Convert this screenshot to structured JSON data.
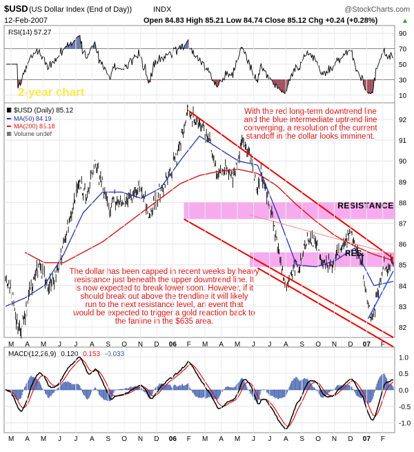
{
  "header": {
    "symbol": "$USD",
    "name": "(US Dollar Index (End of Day))",
    "exchange": "INDX",
    "watermark": "@StockCharts.com",
    "date": "12-Feb-2007",
    "ohlc_text": "Open 84.83  High 85.21  Low 84.74  Close 85.12  Chg +0.24 (+0.28%)",
    "up_glyph": "▲"
  },
  "rsi_panel": {
    "label": "RSI(14) 57.27",
    "annotation": "2-year chart",
    "y_ticks": [
      "90",
      "70",
      "50",
      "30",
      "10"
    ],
    "overbought": 70,
    "oversold": 30,
    "colors": {
      "line": "#000000",
      "fill_high": "#6b7aa8",
      "fill_low": "#a05060",
      "annotation": "#ffe84a",
      "bg": "#ffffff"
    }
  },
  "price_panel": {
    "legend": {
      "main": "$USD (Daily) 85.12",
      "ma50": "MA(50) 84.19",
      "ma200": "MA(200) 85.18",
      "volume": "Volume undef"
    },
    "y_ticks": [
      "92",
      "91",
      "90",
      "89",
      "88",
      "87",
      "86",
      "85",
      "84",
      "83",
      "82"
    ],
    "annotations": {
      "top": "With the red long-term downtrend line and the blue intermediate uptrend line converging, a resolution of the current standoff in the dollar looks imminent.",
      "resistance": "RESISTANCE",
      "res": "RES.",
      "bottom": "The dollar has been capped in recent weeks by heavy resistance just beneath the upper downtrend line. It is now expected to break lower soon. However, if it should break out above the trendline it will likely run to the next resistance level, an event that would be expected to trigger a gold reaction back to the fanline in the $635 area."
    },
    "colors": {
      "bars": "#000000",
      "ma50": "#2233aa",
      "ma200": "#dd1111",
      "trend": "#ee0000",
      "uptrend": "#3355dd",
      "zone": "#f7a8f0",
      "annotation": "#dd1111"
    }
  },
  "x_axis": {
    "labels": [
      "M",
      "A",
      "M",
      "J",
      "J",
      "A",
      "S",
      "O",
      "N",
      "D",
      "06",
      "F",
      "M",
      "A",
      "M",
      "J",
      "J",
      "A",
      "S",
      "O",
      "N",
      "D",
      "07",
      "F"
    ]
  },
  "macd_panel": {
    "label_prefix": "MACD(12,26,9)",
    "value": "0.120",
    "signal": "0.153",
    "histogram": "-0.033",
    "y_ticks": [
      "1.0",
      "0.5",
      "0.0",
      "-0.5",
      "-1.0"
    ],
    "colors": {
      "macd": "#000000",
      "signal": "#dd1111",
      "hist": "#3355aa",
      "hist_label": "#3355aa",
      "signal_label": "#dd1111"
    }
  },
  "chart_data": [
    {
      "type": "line",
      "title": "RSI(14)",
      "ylim": [
        0,
        100
      ],
      "last_value": 57.27,
      "guide_levels": [
        30,
        70
      ]
    },
    {
      "type": "line",
      "title": "$USD (Daily)",
      "ylim": [
        81.5,
        92.8
      ],
      "x_range": [
        "2005-03",
        "2007-02-12"
      ],
      "last_close": 85.12,
      "ohlc_last": {
        "open": 84.83,
        "high": 85.21,
        "low": 84.74,
        "close": 85.12,
        "change": 0.24,
        "change_pct": 0.28
      },
      "ma50_last": 84.19,
      "ma200_last": 85.18,
      "resistance_zones": [
        [
          87.2,
          88.0
        ],
        [
          84.9,
          85.6
        ]
      ],
      "price_path": [
        [
          0,
          84.4
        ],
        [
          0.01,
          83.8
        ],
        [
          0.02,
          83.1
        ],
        [
          0.03,
          82.2
        ],
        [
          0.035,
          81.6
        ],
        [
          0.05,
          82.5
        ],
        [
          0.07,
          84.2
        ],
        [
          0.09,
          85.0
        ],
        [
          0.11,
          84.0
        ],
        [
          0.13,
          84.4
        ],
        [
          0.15,
          86.0
        ],
        [
          0.17,
          87.5
        ],
        [
          0.19,
          89.0
        ],
        [
          0.21,
          88.2
        ],
        [
          0.23,
          89.8
        ],
        [
          0.25,
          88.9
        ],
        [
          0.27,
          87.7
        ],
        [
          0.28,
          88.1
        ],
        [
          0.31,
          87.9
        ],
        [
          0.33,
          88.5
        ],
        [
          0.35,
          88.7
        ],
        [
          0.37,
          87.3
        ],
        [
          0.39,
          88.2
        ],
        [
          0.42,
          89.3
        ],
        [
          0.44,
          90.1
        ],
        [
          0.46,
          91.5
        ],
        [
          0.47,
          92.4
        ],
        [
          0.49,
          91.9
        ],
        [
          0.51,
          91.6
        ],
        [
          0.53,
          90.6
        ],
        [
          0.55,
          89.3
        ],
        [
          0.57,
          89.6
        ],
        [
          0.59,
          89.2
        ],
        [
          0.61,
          91.1
        ],
        [
          0.63,
          90.2
        ],
        [
          0.65,
          88.6
        ],
        [
          0.66,
          89.5
        ],
        [
          0.68,
          88.0
        ],
        [
          0.7,
          86.0
        ],
        [
          0.72,
          84.0
        ],
        [
          0.74,
          84.7
        ],
        [
          0.76,
          85.1
        ],
        [
          0.78,
          86.3
        ],
        [
          0.8,
          86.0
        ],
        [
          0.82,
          85.0
        ],
        [
          0.84,
          85.1
        ],
        [
          0.86,
          85.6
        ],
        [
          0.88,
          86.1
        ],
        [
          0.89,
          86.8
        ],
        [
          0.9,
          86.1
        ],
        [
          0.92,
          85.0
        ],
        [
          0.935,
          83.0
        ],
        [
          0.945,
          82.4
        ],
        [
          0.96,
          83.7
        ],
        [
          0.975,
          84.9
        ],
        [
          0.99,
          85.0
        ],
        [
          1.0,
          85.1
        ]
      ],
      "ma50_path": [
        [
          0,
          83.0
        ],
        [
          0.05,
          83.4
        ],
        [
          0.1,
          84.0
        ],
        [
          0.15,
          85.5
        ],
        [
          0.2,
          87.5
        ],
        [
          0.25,
          88.5
        ],
        [
          0.3,
          88.5
        ],
        [
          0.35,
          88.2
        ],
        [
          0.4,
          88.7
        ],
        [
          0.45,
          90.0
        ],
        [
          0.5,
          91.2
        ],
        [
          0.55,
          90.6
        ],
        [
          0.6,
          90.0
        ],
        [
          0.65,
          89.8
        ],
        [
          0.7,
          87.5
        ],
        [
          0.75,
          85.0
        ],
        [
          0.8,
          84.9
        ],
        [
          0.85,
          85.2
        ],
        [
          0.9,
          85.8
        ],
        [
          0.95,
          84.0
        ],
        [
          1.0,
          84.2
        ]
      ],
      "ma200_path": [
        [
          0.05,
          85.6
        ],
        [
          0.1,
          85.1
        ],
        [
          0.15,
          85.1
        ],
        [
          0.2,
          85.6
        ],
        [
          0.25,
          86.1
        ],
        [
          0.3,
          86.8
        ],
        [
          0.35,
          87.5
        ],
        [
          0.4,
          88.2
        ],
        [
          0.45,
          88.9
        ],
        [
          0.5,
          89.3
        ],
        [
          0.55,
          89.5
        ],
        [
          0.6,
          89.6
        ],
        [
          0.65,
          89.4
        ],
        [
          0.7,
          88.8
        ],
        [
          0.75,
          87.9
        ],
        [
          0.8,
          87.1
        ],
        [
          0.85,
          86.4
        ],
        [
          0.9,
          85.9
        ],
        [
          0.95,
          85.5
        ],
        [
          1.0,
          85.2
        ]
      ]
    },
    {
      "type": "line",
      "title": "MACD(12,26,9)",
      "ylim": [
        -1.3,
        1.3
      ],
      "macd_last": 0.12,
      "signal_last": 0.153,
      "histogram_last": -0.033
    }
  ]
}
